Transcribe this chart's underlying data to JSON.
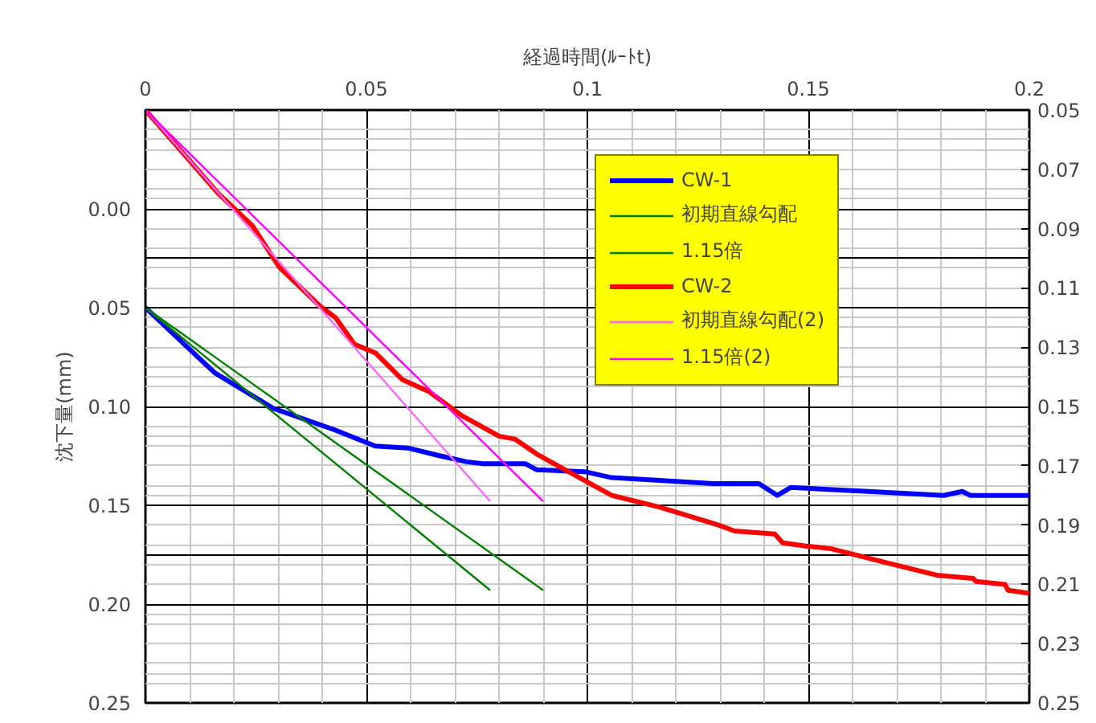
{
  "chart_data": {
    "type": "line",
    "xlabel": "経過時間(ﾙｰﾄt)",
    "ylabel": "沈下量(mm)",
    "xlim": [
      0,
      0.2
    ],
    "xticks": [
      0,
      0.05,
      0.1,
      0.15,
      0.2
    ],
    "ylim": [
      0.25,
      -0.05
    ],
    "yticks": [
      {
        "value": 0,
        "label": "0.00"
      },
      {
        "value": 0.05,
        "label": "0.05"
      },
      {
        "value": 0.1,
        "label": "0.10"
      },
      {
        "value": 0.15,
        "label": "0.15"
      },
      {
        "value": 0.2,
        "label": "0.20"
      },
      {
        "value": 0.25,
        "label": "0.25"
      }
    ],
    "y2lim": [
      0.25,
      0.05
    ],
    "y2ticks": [
      0.05,
      0.07,
      0.09,
      0.11,
      0.13,
      0.15,
      0.17,
      0.19,
      0.21,
      0.23,
      0.25
    ],
    "grid": true,
    "legend": "top right",
    "series": [
      {
        "name": "CW-1",
        "color": "#0000ff",
        "axis": "y",
        "x": [
          0,
          0.0157,
          0.029,
          0.043,
          0.052,
          0.0594,
          0.0667,
          0.0727,
          0.0764,
          0.086,
          0.0885,
          0.0994,
          0.1055,
          0.1285,
          0.1388,
          0.143,
          0.146,
          0.1636,
          0.1806,
          0.1848,
          0.1867,
          0.2
        ],
        "values": [
          0.05,
          0.083,
          0.101,
          0.112,
          0.12,
          0.121,
          0.125,
          0.128,
          0.129,
          0.129,
          0.132,
          0.133,
          0.136,
          0.139,
          0.139,
          0.145,
          0.141,
          0.143,
          0.145,
          0.143,
          0.145,
          0.145
        ]
      },
      {
        "name": "初期直線勾配",
        "color": "#008000",
        "axis": "y",
        "x": [
          0,
          0.078
        ],
        "values": [
          0.05,
          0.193
        ]
      },
      {
        "name": "1.15倍",
        "color": "#008000",
        "axis": "y",
        "x": [
          0,
          0.09
        ],
        "values": [
          0.05,
          0.193
        ]
      },
      {
        "name": "CW-2",
        "color": "#ff0000",
        "axis": "y2",
        "x": [
          0,
          0.0164,
          0.0242,
          0.0303,
          0.0394,
          0.043,
          0.0473,
          0.0521,
          0.0582,
          0.0642,
          0.0715,
          0.08,
          0.0836,
          0.0885,
          0.0945,
          0.1055,
          0.1164,
          0.1297,
          0.1333,
          0.1424,
          0.1442,
          0.1491,
          0.1552,
          0.1685,
          0.1794,
          0.1873,
          0.1879,
          0.1945,
          0.1952,
          0.2
        ],
        "values": [
          0.05,
          0.078,
          0.089,
          0.103,
          0.116,
          0.12,
          0.129,
          0.132,
          0.141,
          0.145,
          0.153,
          0.16,
          0.161,
          0.166,
          0.171,
          0.18,
          0.184,
          0.19,
          0.192,
          0.193,
          0.196,
          0.197,
          0.198,
          0.203,
          0.207,
          0.208,
          0.209,
          0.21,
          0.212,
          0.213
        ]
      },
      {
        "name": "初期直線勾配(2)",
        "color": "#ff66ff",
        "axis": "y2",
        "x": [
          0,
          0.078
        ],
        "values": [
          0.05,
          0.182
        ]
      },
      {
        "name": "1.15倍(2)",
        "color": "#ff00ff",
        "axis": "y2",
        "x": [
          0,
          0.09
        ],
        "values": [
          0.05,
          0.182
        ]
      }
    ]
  }
}
